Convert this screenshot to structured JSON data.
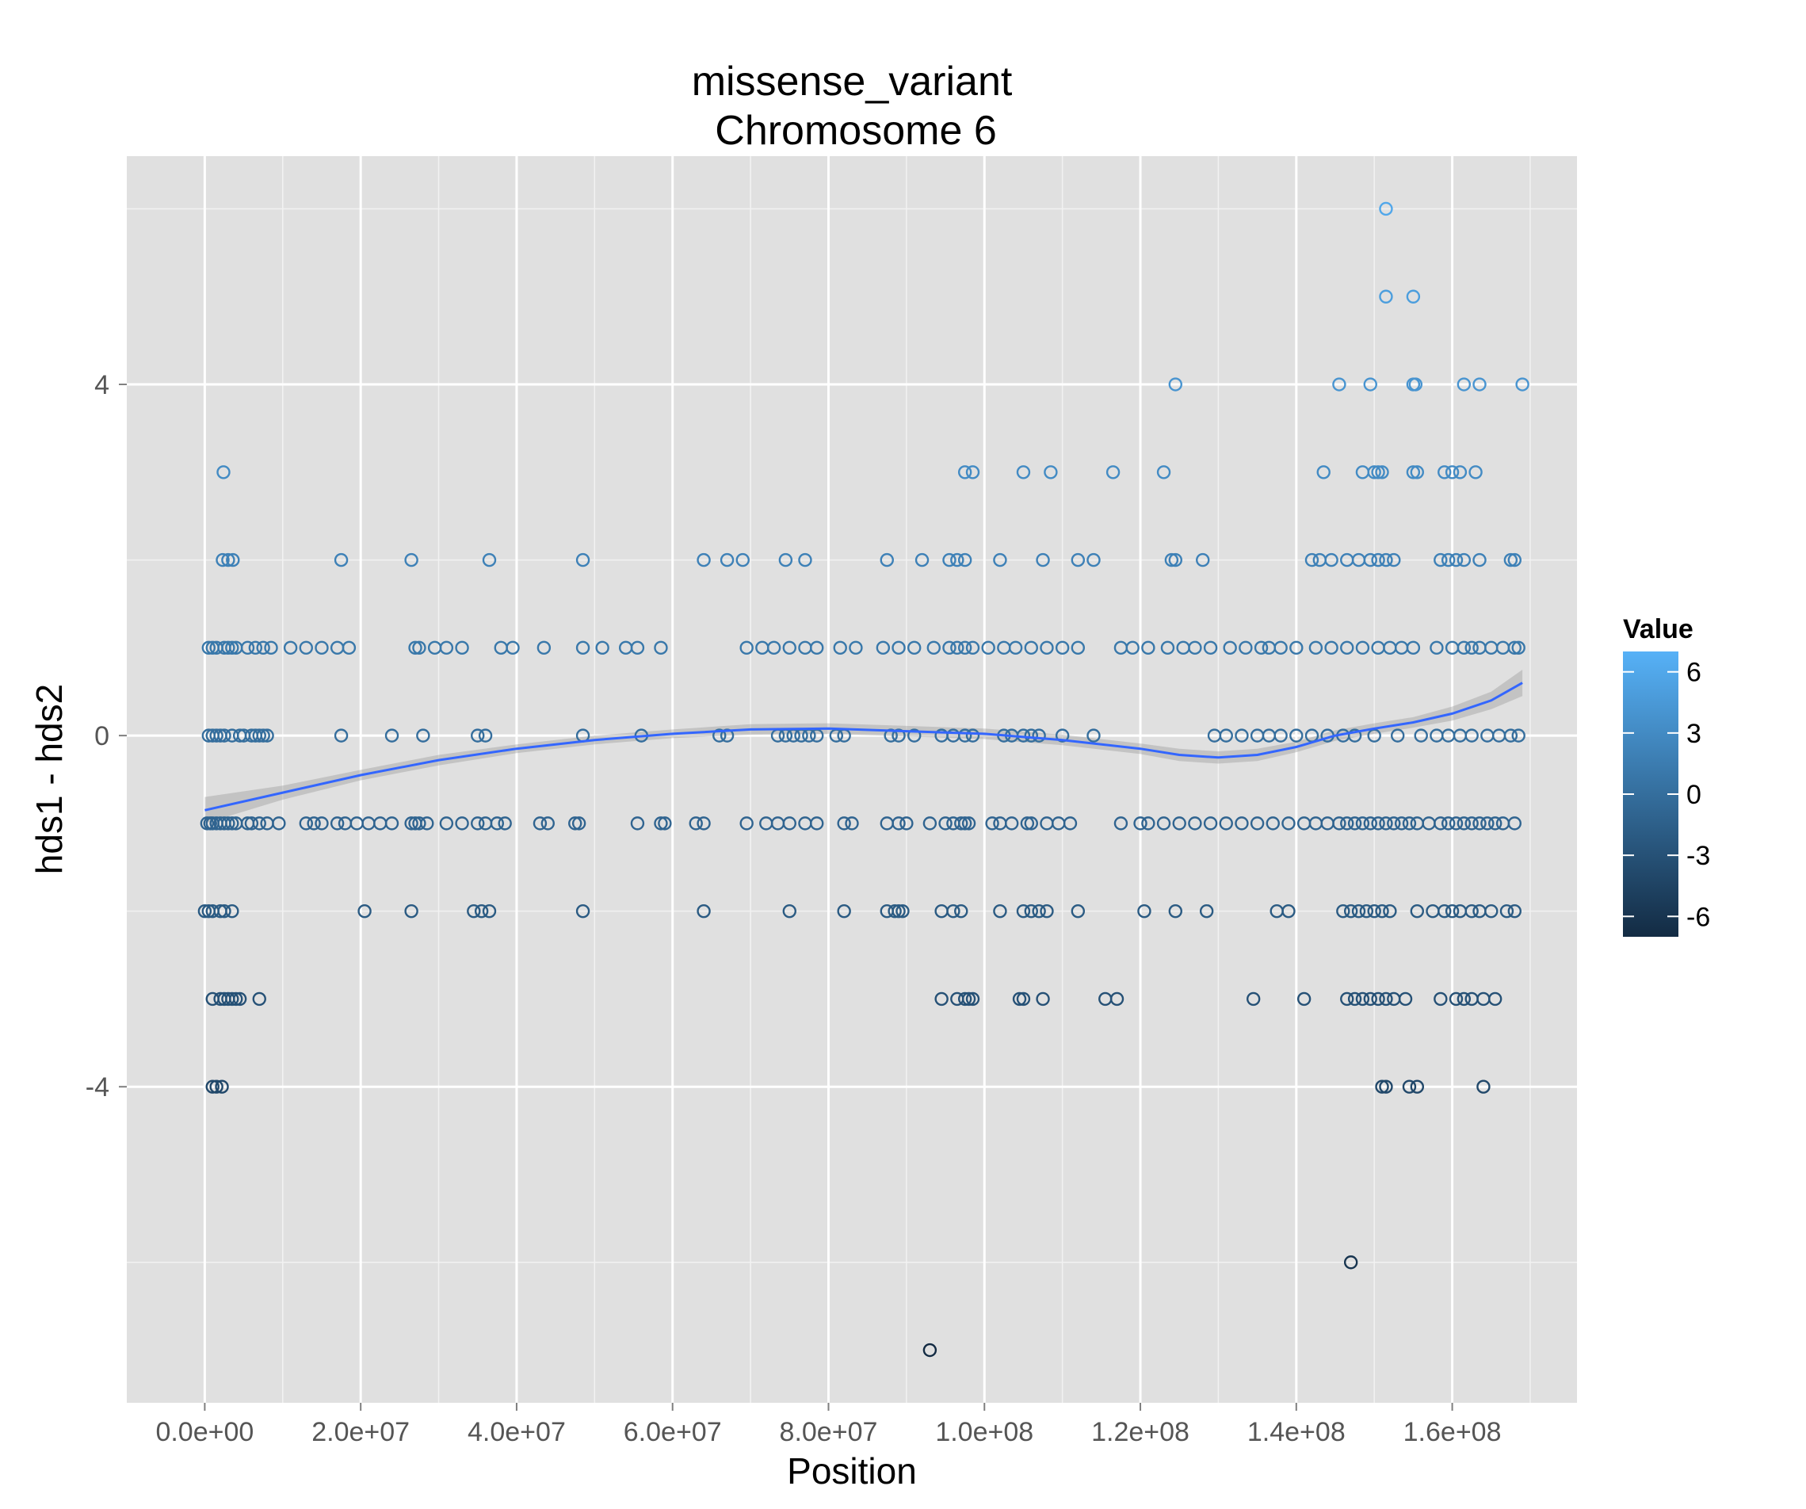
{
  "chart_data": {
    "type": "scatter",
    "title": "missense_variant",
    "subtitle": "Chromosome 6",
    "xlabel": "Position",
    "ylabel": "hds1 - hds2",
    "xlim": [
      -10000000,
      176000000
    ],
    "ylim": [
      -7.6,
      6.6
    ],
    "x_ticks": [
      0,
      20000000,
      40000000,
      60000000,
      80000000,
      100000000,
      120000000,
      140000000,
      160000000
    ],
    "x_tick_labels": [
      "0.0e+00",
      "2.0e+07",
      "4.0e+07",
      "6.0e+07",
      "8.0e+07",
      "1.0e+08",
      "1.2e+08",
      "1.4e+08",
      "1.6e+08"
    ],
    "y_ticks": [
      -4,
      0,
      4
    ],
    "y_tick_labels": [
      "-4",
      "0",
      "4"
    ],
    "grid": true,
    "panel_background": "#e0e0e0",
    "grid_color": "#ffffff",
    "legend": {
      "title": "Value",
      "position": "right",
      "range": [
        -7,
        7
      ],
      "ticks": [
        6,
        3,
        0,
        -3,
        -6
      ],
      "tick_labels": [
        "6",
        "3",
        "0",
        "-3",
        "-6"
      ],
      "color_low": "#132b43",
      "color_high": "#56b1f7"
    },
    "color_by": "y",
    "marker": "open-circle",
    "smooth": {
      "method": "loess",
      "color": "#3366ff",
      "ribbon_color": "#999999",
      "points": [
        [
          0,
          -0.85
        ],
        [
          10000000,
          -0.65
        ],
        [
          20000000,
          -0.45
        ],
        [
          30000000,
          -0.28
        ],
        [
          40000000,
          -0.15
        ],
        [
          50000000,
          -0.05
        ],
        [
          60000000,
          0.02
        ],
        [
          70000000,
          0.07
        ],
        [
          80000000,
          0.08
        ],
        [
          90000000,
          0.05
        ],
        [
          100000000,
          0.02
        ],
        [
          110000000,
          -0.05
        ],
        [
          120000000,
          -0.15
        ],
        [
          125000000,
          -0.22
        ],
        [
          130000000,
          -0.25
        ],
        [
          135000000,
          -0.22
        ],
        [
          140000000,
          -0.13
        ],
        [
          145000000,
          0.0
        ],
        [
          150000000,
          0.08
        ],
        [
          155000000,
          0.15
        ],
        [
          160000000,
          0.25
        ],
        [
          165000000,
          0.4
        ],
        [
          169000000,
          0.6
        ]
      ],
      "ribbon_halfwidth": [
        0.15,
        0.08,
        0.06,
        0.06,
        0.05,
        0.05,
        0.05,
        0.06,
        0.06,
        0.06,
        0.06,
        0.06,
        0.06,
        0.07,
        0.07,
        0.07,
        0.06,
        0.06,
        0.06,
        0.06,
        0.08,
        0.1,
        0.15
      ]
    },
    "series": [
      {
        "x": [
          0,
          500000,
          1000000,
          2000000,
          2500000,
          3500000
        ],
        "y": [
          -2,
          -2,
          -2,
          -2,
          -2,
          -2
        ]
      },
      {
        "x": [
          300000,
          700000,
          1000000,
          1500000,
          2000000,
          2500000,
          3000000,
          3500000,
          4000000,
          5500000,
          6000000,
          7000000,
          8000000,
          9500000,
          13000000,
          14000000,
          15000000,
          17000000,
          18000000,
          19500000,
          21000000,
          22500000,
          24000000,
          26500000,
          27000000,
          27500000,
          28500000,
          31000000,
          33000000,
          35000000,
          36000000,
          37500000,
          38500000,
          43000000,
          44000000,
          47500000,
          48000000,
          55500000,
          58500000,
          59000000,
          63000000,
          64000000,
          69500000,
          72000000,
          73500000,
          75000000,
          77000000,
          78500000,
          82000000,
          83000000,
          87500000,
          89000000,
          90000000,
          93000000,
          95000000,
          96000000,
          97000000,
          97500000,
          98000000,
          101000000,
          102000000,
          103500000,
          105500000,
          106000000,
          108000000,
          109500000,
          111000000,
          117500000,
          120000000,
          121000000,
          123000000,
          125000000,
          127000000,
          129000000,
          131000000,
          133000000,
          135000000,
          137000000,
          139000000,
          141000000,
          142500000,
          144000000,
          145500000,
          146500000,
          147500000,
          148500000,
          149500000,
          150500000,
          151500000,
          152500000,
          153500000,
          154500000,
          155500000,
          157000000,
          158500000,
          159500000,
          160500000,
          161500000,
          162500000,
          163500000,
          164500000,
          165500000,
          166500000,
          168000000
        ],
        "y": [
          -1,
          -1,
          -1,
          -1,
          -1,
          -1,
          -1,
          -1,
          -1,
          -1,
          -1,
          -1,
          -1,
          -1,
          -1,
          -1,
          -1,
          -1,
          -1,
          -1,
          -1,
          -1,
          -1,
          -1,
          -1,
          -1,
          -1,
          -1,
          -1,
          -1,
          -1,
          -1,
          -1,
          -1,
          -1,
          -1,
          -1,
          -1,
          -1,
          -1,
          -1,
          -1,
          -1,
          -1,
          -1,
          -1,
          -1,
          -1,
          -1,
          -1,
          -1,
          -1,
          -1,
          -1,
          -1,
          -1,
          -1,
          -1,
          -1,
          -1,
          -1,
          -1,
          -1,
          -1,
          -1,
          -1,
          -1,
          -1,
          -1,
          -1,
          -1,
          -1,
          -1,
          -1,
          -1,
          -1,
          -1,
          -1,
          -1,
          -1,
          -1,
          -1,
          -1,
          -1,
          -1,
          -1,
          -1,
          -1,
          -1,
          -1,
          -1,
          -1,
          -1,
          -1,
          -1,
          -1,
          -1,
          -1,
          -1,
          -1,
          -1,
          -1,
          -1,
          -1
        ]
      },
      {
        "x": [
          500000,
          1000000,
          1500000,
          2000000,
          2500000,
          3500000,
          4500000,
          5000000,
          6000000,
          6500000,
          7000000,
          7500000,
          8000000,
          17500000,
          24000000,
          28000000,
          35000000,
          36000000,
          48500000,
          56000000,
          66000000,
          67000000,
          73500000,
          74500000,
          75500000,
          76500000,
          77500000,
          78500000,
          81000000,
          82000000,
          88000000,
          89000000,
          91000000,
          94500000,
          96000000,
          97500000,
          98500000,
          102500000,
          103500000,
          105000000,
          106000000,
          107000000,
          110000000,
          114000000,
          129500000,
          131000000,
          133000000,
          135000000,
          136500000,
          138000000,
          140000000,
          142000000,
          144000000,
          146000000,
          147500000,
          150000000,
          153000000,
          156000000,
          158000000,
          159500000,
          161000000,
          162500000,
          164500000,
          166000000,
          167500000,
          168500000
        ],
        "y": [
          0,
          0,
          0,
          0,
          0,
          0,
          0,
          0,
          0,
          0,
          0,
          0,
          0,
          0,
          0,
          0,
          0,
          0,
          0,
          0,
          0,
          0,
          0,
          0,
          0,
          0,
          0,
          0,
          0,
          0,
          0,
          0,
          0,
          0,
          0,
          0,
          0,
          0,
          0,
          0,
          0,
          0,
          0,
          0,
          0,
          0,
          0,
          0,
          0,
          0,
          0,
          0,
          0,
          0,
          0,
          0,
          0,
          0,
          0,
          0,
          0,
          0,
          0,
          0,
          0,
          0
        ]
      },
      {
        "x": [
          500000,
          1000000,
          1500000,
          2500000,
          3000000,
          3500000,
          4000000,
          5500000,
          6500000,
          7500000,
          8500000,
          11000000,
          13000000,
          15000000,
          17000000,
          18500000,
          27000000,
          27500000,
          29500000,
          31000000,
          33000000,
          38000000,
          39500000,
          43500000,
          48500000,
          51000000,
          54000000,
          55500000,
          58500000,
          69500000,
          71500000,
          73000000,
          75000000,
          77000000,
          78500000,
          81500000,
          83500000,
          87000000,
          89000000,
          91000000,
          93500000,
          95500000,
          96500000,
          97500000,
          98500000,
          100500000,
          102500000,
          104000000,
          106000000,
          108000000,
          110000000,
          112000000,
          117500000,
          119000000,
          121000000,
          123500000,
          125500000,
          127000000,
          129000000,
          131500000,
          133500000,
          135500000,
          136500000,
          138000000,
          140000000,
          142500000,
          144500000,
          146500000,
          148500000,
          150500000,
          152000000,
          153500000,
          155000000,
          158000000,
          160000000,
          161500000,
          162500000,
          163500000,
          165000000,
          166500000,
          168000000,
          168500000
        ],
        "y": [
          1,
          1,
          1,
          1,
          1,
          1,
          1,
          1,
          1,
          1,
          1,
          1,
          1,
          1,
          1,
          1,
          1,
          1,
          1,
          1,
          1,
          1,
          1,
          1,
          1,
          1,
          1,
          1,
          1,
          1,
          1,
          1,
          1,
          1,
          1,
          1,
          1,
          1,
          1,
          1,
          1,
          1,
          1,
          1,
          1,
          1,
          1,
          1,
          1,
          1,
          1,
          1,
          1,
          1,
          1,
          1,
          1,
          1,
          1,
          1,
          1,
          1,
          1,
          1,
          1,
          1,
          1,
          1,
          1,
          1,
          1,
          1,
          1,
          1,
          1,
          1,
          1,
          1,
          1,
          1,
          1,
          1
        ]
      },
      {
        "x": [
          2300000,
          3000000,
          3600000,
          17500000,
          26500000,
          36500000,
          48500000,
          64000000,
          67000000,
          69000000,
          74500000,
          77000000,
          87500000,
          92000000,
          95500000,
          96500000,
          97500000,
          102000000,
          107500000,
          112000000,
          114000000,
          124000000,
          124500000,
          128000000,
          142000000,
          143000000,
          144500000,
          146500000,
          148000000,
          149500000,
          150500000,
          151500000,
          152500000,
          158500000,
          159500000,
          160500000,
          161500000,
          163500000,
          167500000,
          168000000
        ],
        "y": [
          2,
          2,
          2,
          2,
          2,
          2,
          2,
          2,
          2,
          2,
          2,
          2,
          2,
          2,
          2,
          2,
          2,
          2,
          2,
          2,
          2,
          2,
          2,
          2,
          2,
          2,
          2,
          2,
          2,
          2,
          2,
          2,
          2,
          2,
          2,
          2,
          2,
          2,
          2,
          2
        ]
      },
      {
        "x": [
          2400000,
          97500000,
          98500000,
          105000000,
          108500000,
          116500000,
          123000000,
          143500000,
          148500000,
          150000000,
          150500000,
          151000000,
          155000000,
          155500000,
          159000000,
          160000000,
          161000000,
          163000000
        ],
        "y": [
          3,
          3,
          3,
          3,
          3,
          3,
          3,
          3,
          3,
          3,
          3,
          3,
          3,
          3,
          3,
          3,
          3,
          3
        ]
      },
      {
        "x": [
          124500000,
          145500000,
          149500000,
          155000000,
          155300000,
          161500000,
          163500000,
          169000000
        ],
        "y": [
          4,
          4,
          4,
          4,
          4,
          4,
          4,
          4
        ]
      },
      {
        "x": [
          151500000,
          155000000
        ],
        "y": [
          5,
          5
        ]
      },
      {
        "x": [
          151500000
        ],
        "y": [
          6
        ]
      },
      {
        "x": [
          1000000,
          2000000,
          2500000,
          3000000,
          3500000,
          4000000,
          4500000,
          7000000,
          94500000,
          96500000,
          97500000,
          98000000,
          98500000,
          104500000,
          105000000,
          107500000,
          115500000,
          117000000,
          134500000,
          141000000,
          146500000,
          147500000,
          148500000,
          149500000,
          150500000,
          151500000,
          152500000,
          154000000,
          158500000,
          160500000,
          161500000,
          162500000,
          164000000,
          165500000
        ],
        "y": [
          -3,
          -3,
          -3,
          -3,
          -3,
          -3,
          -3,
          -3,
          -3,
          -3,
          -3,
          -3,
          -3,
          -3,
          -3,
          -3,
          -3,
          -3,
          -3,
          -3,
          -3,
          -3,
          -3,
          -3,
          -3,
          -3,
          -3,
          -3,
          -3,
          -3,
          -3,
          -3,
          -3,
          -3
        ]
      },
      {
        "x": [
          20500000,
          26500000,
          34500000,
          35500000,
          36500000,
          48500000,
          64000000,
          75000000,
          82000000,
          87500000,
          88500000,
          89000000,
          89500000,
          94500000,
          96000000,
          97000000,
          102000000,
          105000000,
          106000000,
          107000000,
          108000000,
          112000000,
          120500000,
          124500000,
          128500000,
          137500000,
          139000000,
          146000000,
          147000000,
          148000000,
          149000000,
          150000000,
          151000000,
          152000000,
          155500000,
          157500000,
          159000000,
          160000000,
          161000000,
          162500000,
          163500000,
          165000000,
          167000000,
          168000000
        ],
        "y": [
          -2,
          -2,
          -2,
          -2,
          -2,
          -2,
          -2,
          -2,
          -2,
          -2,
          -2,
          -2,
          -2,
          -2,
          -2,
          -2,
          -2,
          -2,
          -2,
          -2,
          -2,
          -2,
          -2,
          -2,
          -2,
          -2,
          -2,
          -2,
          -2,
          -2,
          -2,
          -2,
          -2,
          -2,
          -2,
          -2,
          -2,
          -2,
          -2,
          -2,
          -2,
          -2,
          -2,
          -2
        ]
      },
      {
        "x": [
          1000000,
          1500000,
          2200000,
          151000000,
          151500000,
          154500000,
          155500000,
          164000000
        ],
        "y": [
          -4,
          -4,
          -4,
          -4,
          -4,
          -4,
          -4,
          -4
        ]
      },
      {
        "x": [
          147000000
        ],
        "y": [
          -6
        ]
      },
      {
        "x": [
          93000000
        ],
        "y": [
          -7
        ]
      }
    ]
  }
}
